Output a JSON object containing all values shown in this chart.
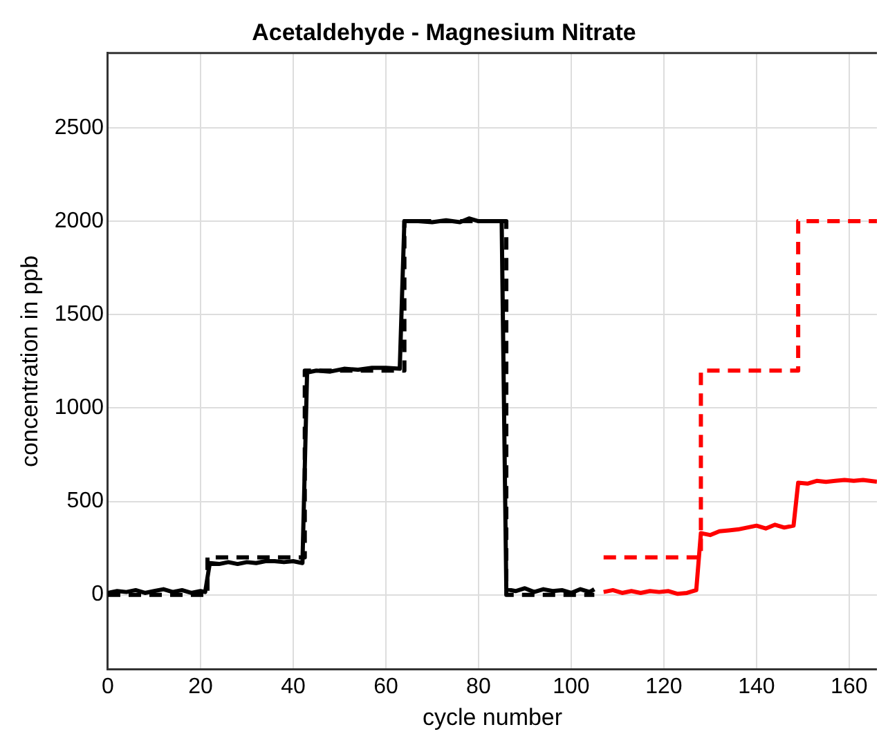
{
  "chart_data": {
    "type": "line",
    "title": "Acetaldehyde - Magnesium Nitrate",
    "xlabel": "cycle number",
    "ylabel": "concentration in ppb",
    "xlim": [
      0,
      166
    ],
    "xticks": [
      0,
      20,
      40,
      60,
      80,
      100,
      120,
      140,
      160
    ],
    "ylim": [
      -400,
      2900
    ],
    "yticks": [
      0,
      500,
      1000,
      1500,
      2000,
      2500
    ],
    "grid": true,
    "legend": false,
    "marker": "none",
    "series": [
      {
        "color": "#000000",
        "line_style": "solid",
        "x": [
          0,
          2,
          4,
          6,
          8,
          10,
          12,
          14,
          16,
          18,
          20,
          21,
          22,
          24,
          26,
          28,
          30,
          32,
          34,
          36,
          38,
          40,
          42,
          43,
          45,
          48,
          51,
          54,
          57,
          60,
          63,
          64,
          67,
          70,
          73,
          76,
          78,
          80,
          83,
          85,
          86,
          88,
          90,
          92,
          94,
          96,
          98,
          100,
          102,
          104,
          105
        ],
        "values": [
          10,
          20,
          15,
          25,
          10,
          20,
          30,
          15,
          25,
          10,
          20,
          15,
          170,
          165,
          175,
          165,
          175,
          170,
          180,
          180,
          175,
          180,
          170,
          1190,
          1200,
          1195,
          1210,
          1205,
          1215,
          1215,
          1210,
          2000,
          2000,
          1995,
          2005,
          1995,
          2015,
          2000,
          2000,
          2000,
          30,
          20,
          35,
          15,
          30,
          20,
          25,
          10,
          30,
          15,
          30
        ]
      },
      {
        "color": "#000000",
        "line_style": "dashed",
        "x": [
          0,
          21.5,
          21.5,
          42.5,
          42.5,
          64,
          64,
          86,
          86,
          105
        ],
        "values": [
          0,
          0,
          200,
          200,
          1200,
          1200,
          2000,
          2000,
          0,
          0
        ]
      },
      {
        "color": "#ff0000",
        "line_style": "dashed",
        "x": [
          107,
          128,
          128,
          149,
          149,
          166
        ],
        "values": [
          200,
          200,
          1200,
          1200,
          2000,
          2000
        ]
      },
      {
        "color": "#ff0000",
        "line_style": "solid",
        "x": [
          107,
          109,
          111,
          113,
          115,
          117,
          119,
          121,
          123,
          125,
          127,
          128,
          130,
          132,
          134,
          136,
          138,
          140,
          142,
          144,
          146,
          148,
          149,
          151,
          153,
          155,
          157,
          159,
          161,
          163,
          166
        ],
        "values": [
          15,
          25,
          10,
          20,
          10,
          20,
          15,
          20,
          5,
          10,
          25,
          330,
          320,
          340,
          345,
          350,
          360,
          370,
          355,
          375,
          360,
          370,
          600,
          595,
          610,
          605,
          610,
          615,
          610,
          615,
          605
        ]
      }
    ]
  }
}
